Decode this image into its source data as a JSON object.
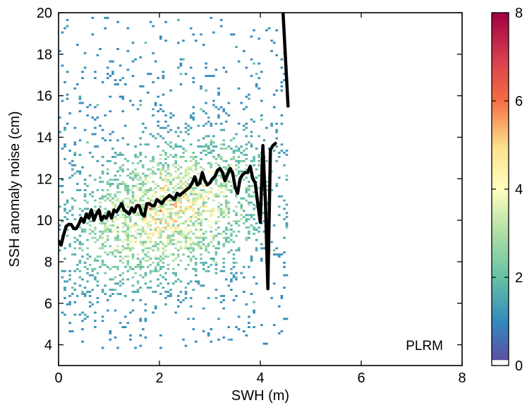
{
  "chart_data": {
    "type": "heatmap",
    "title": "",
    "xlabel": "SWH (m)",
    "ylabel": "SSH anomaly noise (cm)",
    "xlim": [
      0,
      8
    ],
    "ylim": [
      3,
      20
    ],
    "xticks": [
      0,
      2,
      4,
      6,
      8
    ],
    "yticks": [
      4,
      6,
      8,
      10,
      12,
      14,
      16,
      18,
      20
    ],
    "annotation": "PLRM",
    "grid": false,
    "colorbar": {
      "range": [
        0,
        8
      ],
      "ticks": [
        0,
        2,
        4,
        6,
        8
      ],
      "colormap": "spectral (blue-green-yellow-red)",
      "low_color": "#5e4fa2",
      "high_color": "#9e0142"
    },
    "density": {
      "description": "2D histogram of points, densest around SWH 1-3 m and SSH noise 8-12 cm",
      "x_range": [
        0,
        4.5
      ],
      "y_range": [
        3.8,
        19.8
      ],
      "peak_center": [
        2.2,
        10.5
      ],
      "peak_value": 5
    },
    "series": [
      {
        "name": "",
        "style": "mean",
        "x": [
          0.0,
          0.05,
          0.1,
          0.15,
          0.2,
          0.25,
          0.3,
          0.35,
          0.4,
          0.45,
          0.5,
          0.55,
          0.6,
          0.65,
          0.7,
          0.75,
          0.8,
          0.85,
          0.9,
          0.95,
          1.0,
          1.05,
          1.1,
          1.15,
          1.2,
          1.25,
          1.3,
          1.35,
          1.4,
          1.45,
          1.5,
          1.55,
          1.6,
          1.65,
          1.7,
          1.75,
          1.8,
          1.85,
          1.9,
          1.95,
          2.0,
          2.05,
          2.1,
          2.15,
          2.2,
          2.25,
          2.3,
          2.35,
          2.4,
          2.45,
          2.5,
          2.55,
          2.6,
          2.65,
          2.7,
          2.75,
          2.8,
          2.85,
          2.9,
          2.95,
          3.0,
          3.05,
          3.1,
          3.15,
          3.2,
          3.25,
          3.3,
          3.35,
          3.4,
          3.45,
          3.5,
          3.55,
          3.6,
          3.65,
          3.7,
          3.75,
          3.8,
          3.85,
          3.9,
          3.95,
          4.0,
          4.05,
          4.1,
          4.15,
          4.2,
          4.25,
          4.3
        ],
        "y": [
          9.0,
          8.8,
          9.3,
          9.7,
          9.8,
          9.8,
          9.6,
          9.6,
          9.8,
          10.1,
          9.9,
          10.3,
          10.1,
          10.5,
          10.0,
          10.3,
          10.5,
          10.0,
          10.2,
          10.1,
          10.4,
          10.1,
          10.5,
          10.4,
          10.6,
          10.8,
          10.5,
          10.4,
          10.3,
          10.6,
          10.4,
          10.7,
          10.7,
          10.3,
          10.2,
          10.8,
          10.8,
          10.7,
          10.7,
          11.0,
          10.9,
          10.8,
          11.0,
          11.1,
          11.2,
          11.1,
          11.0,
          11.3,
          11.2,
          11.3,
          11.4,
          11.5,
          11.6,
          11.8,
          12.1,
          11.7,
          11.8,
          12.3,
          11.9,
          11.7,
          11.8,
          12.0,
          12.1,
          12.4,
          12.5,
          12.3,
          11.9,
          12.2,
          12.5,
          12.3,
          11.6,
          11.3,
          12.0,
          12.2,
          12.3,
          12.3,
          12.6,
          12.0,
          11.8,
          10.8,
          9.9,
          13.6,
          11.0,
          6.7,
          13.4,
          13.6,
          13.7
        ]
      },
      {
        "name": "",
        "style": "mean-tail",
        "x": [
          4.45,
          4.55
        ],
        "y": [
          20.0,
          15.5
        ]
      }
    ]
  }
}
